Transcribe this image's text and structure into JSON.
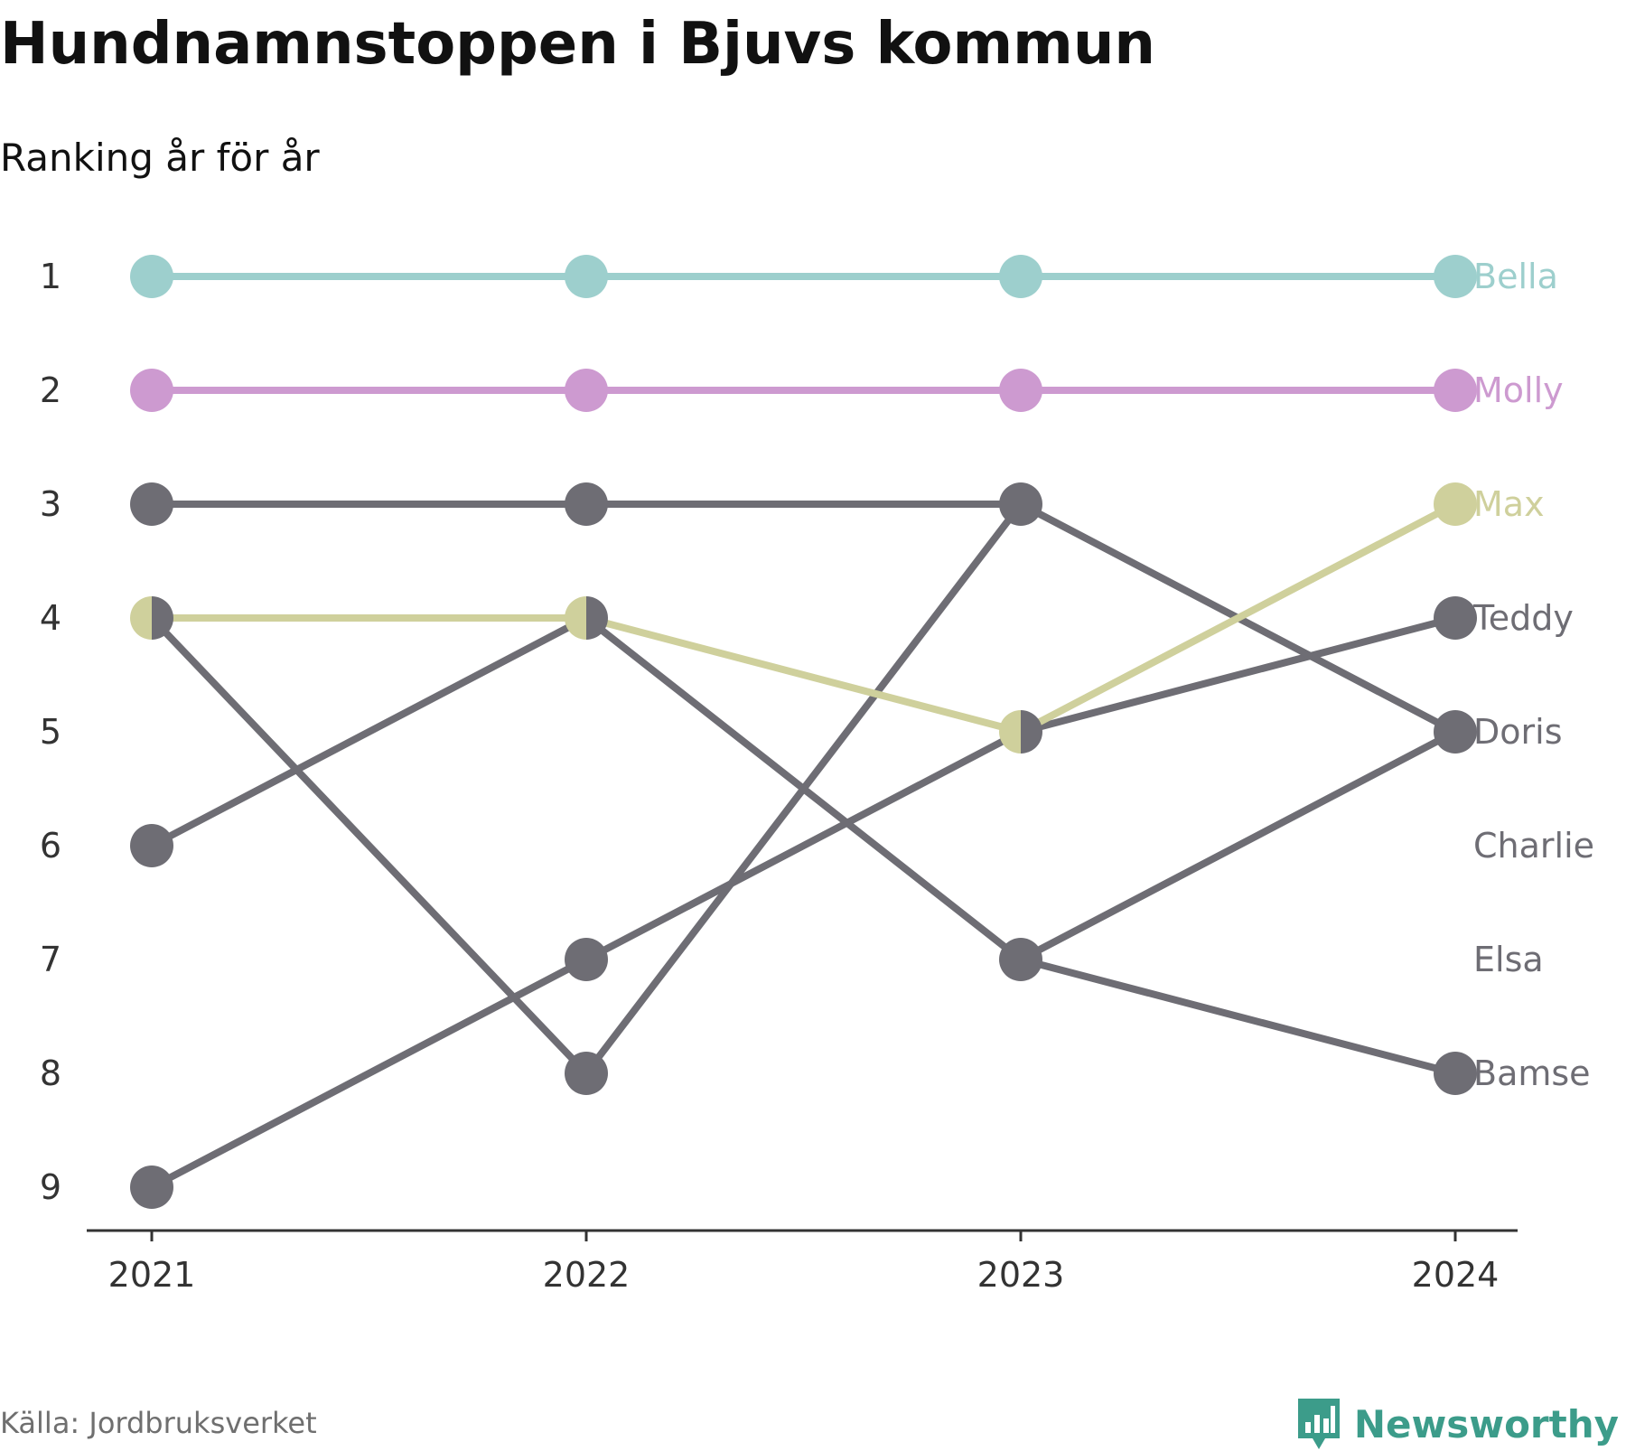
{
  "header": {
    "title": "Hundnamnstoppen i Bjuvs kommun",
    "subtitle": "Ranking år för år"
  },
  "footer": {
    "source": "Källa: Jordbruksverket",
    "brand": "Newsworthy",
    "brand_icon": "newsworthy-logo-icon"
  },
  "colors": {
    "bella": "#9dcfcd",
    "molly": "#cd9ad0",
    "max": "#cfd09c",
    "grey": "#6e6d74",
    "axis": "#333333",
    "tick_text": "#333333",
    "brand": "#3c9c8a"
  },
  "chart_data": {
    "type": "line",
    "title": "Hundnamnstoppen i Bjuvs kommun",
    "subtitle": "Ranking år för år",
    "x": [
      "2021",
      "2022",
      "2023",
      "2024"
    ],
    "y_ticks": [
      "1",
      "2",
      "3",
      "4",
      "5",
      "6",
      "7",
      "8",
      "9"
    ],
    "ylim": [
      1,
      9
    ],
    "y_inverted": true,
    "grid": false,
    "legend": "direct labels at right",
    "series": [
      {
        "name": "Bella",
        "color": "#9dcfcd",
        "values": [
          1,
          1,
          1,
          1
        ]
      },
      {
        "name": "Molly",
        "color": "#cd9ad0",
        "values": [
          2,
          2,
          2,
          2
        ]
      },
      {
        "name": "Max",
        "color": "#cfd09c",
        "values": [
          4,
          4,
          5,
          3
        ]
      },
      {
        "name": "Teddy",
        "color": "#6e6d74",
        "values": [
          9,
          7,
          5,
          4
        ]
      },
      {
        "name": "Doris",
        "color": "#6e6d74",
        "values": [
          3,
          3,
          3,
          5
        ]
      },
      {
        "name": "Charlie",
        "color": "#6e6d74",
        "values": [
          4,
          8,
          null,
          null
        ]
      },
      {
        "name": "Elsa",
        "color": "#6e6d74",
        "values": [
          6,
          4,
          7,
          null
        ]
      },
      {
        "name": "Bamse",
        "color": "#6e6d74",
        "values": [
          null,
          null,
          7,
          8
        ]
      },
      {
        "name": "",
        "color": "#6e6d74",
        "values": [
          null,
          8,
          3,
          null
        ]
      },
      {
        "name": "",
        "color": "#6e6d74",
        "values": [
          null,
          null,
          7,
          5
        ]
      }
    ]
  }
}
